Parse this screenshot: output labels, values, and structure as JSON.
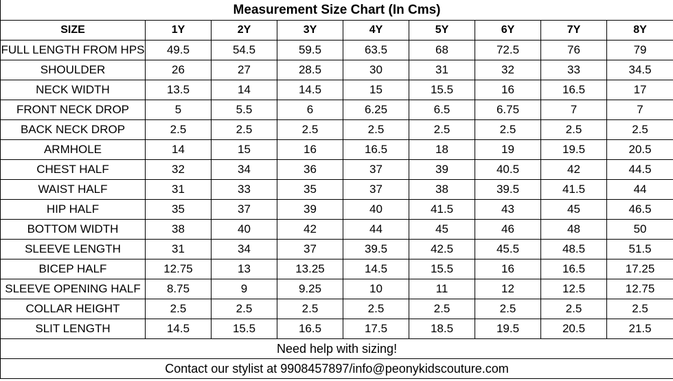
{
  "title": "Measurement Size Chart (In Cms)",
  "header": {
    "label": "SIZE",
    "sizes": [
      "1Y",
      "2Y",
      "3Y",
      "4Y",
      "5Y",
      "6Y",
      "7Y",
      "8Y"
    ]
  },
  "rows": [
    {
      "label": "FULL LENGTH FROM HPS",
      "values": [
        "49.5",
        "54.5",
        "59.5",
        "63.5",
        "68",
        "72.5",
        "76",
        "79"
      ]
    },
    {
      "label": "SHOULDER",
      "values": [
        "26",
        "27",
        "28.5",
        "30",
        "31",
        "32",
        "33",
        "34.5"
      ]
    },
    {
      "label": "NECK WIDTH",
      "values": [
        "13.5",
        "14",
        "14.5",
        "15",
        "15.5",
        "16",
        "16.5",
        "17"
      ]
    },
    {
      "label": "FRONT NECK DROP",
      "values": [
        "5",
        "5.5",
        "6",
        "6.25",
        "6.5",
        "6.75",
        "7",
        "7"
      ]
    },
    {
      "label": "BACK NECK DROP",
      "values": [
        "2.5",
        "2.5",
        "2.5",
        "2.5",
        "2.5",
        "2.5",
        "2.5",
        "2.5"
      ]
    },
    {
      "label": "ARMHOLE",
      "values": [
        "14",
        "15",
        "16",
        "16.5",
        "18",
        "19",
        "19.5",
        "20.5"
      ]
    },
    {
      "label": "CHEST HALF",
      "values": [
        "32",
        "34",
        "36",
        "37",
        "39",
        "40.5",
        "42",
        "44.5"
      ]
    },
    {
      "label": "WAIST HALF",
      "values": [
        "31",
        "33",
        "35",
        "37",
        "38",
        "39.5",
        "41.5",
        "44"
      ]
    },
    {
      "label": "HIP HALF",
      "values": [
        "35",
        "37",
        "39",
        "40",
        "41.5",
        "43",
        "45",
        "46.5"
      ]
    },
    {
      "label": "BOTTOM WIDTH",
      "values": [
        "38",
        "40",
        "42",
        "44",
        "45",
        "46",
        "48",
        "50"
      ]
    },
    {
      "label": "SLEEVE LENGTH",
      "values": [
        "31",
        "34",
        "37",
        "39.5",
        "42.5",
        "45.5",
        "48.5",
        "51.5"
      ]
    },
    {
      "label": "BICEP HALF",
      "values": [
        "12.75",
        "13",
        "13.25",
        "14.5",
        "15.5",
        "16",
        "16.5",
        "17.25"
      ]
    },
    {
      "label": "SLEEVE OPENING HALF",
      "values": [
        "8.75",
        "9",
        "9.25",
        "10",
        "11",
        "12",
        "12.5",
        "12.75"
      ]
    },
    {
      "label": "COLLAR HEIGHT",
      "values": [
        "2.5",
        "2.5",
        "2.5",
        "2.5",
        "2.5",
        "2.5",
        "2.5",
        "2.5"
      ]
    },
    {
      "label": "SLIT LENGTH",
      "values": [
        "14.5",
        "15.5",
        "16.5",
        "17.5",
        "18.5",
        "19.5",
        "20.5",
        "21.5"
      ]
    }
  ],
  "footer": {
    "help": "Need help with sizing!",
    "contact": "Contact our stylist at 9908457897/info@peonykidscouture.com"
  }
}
